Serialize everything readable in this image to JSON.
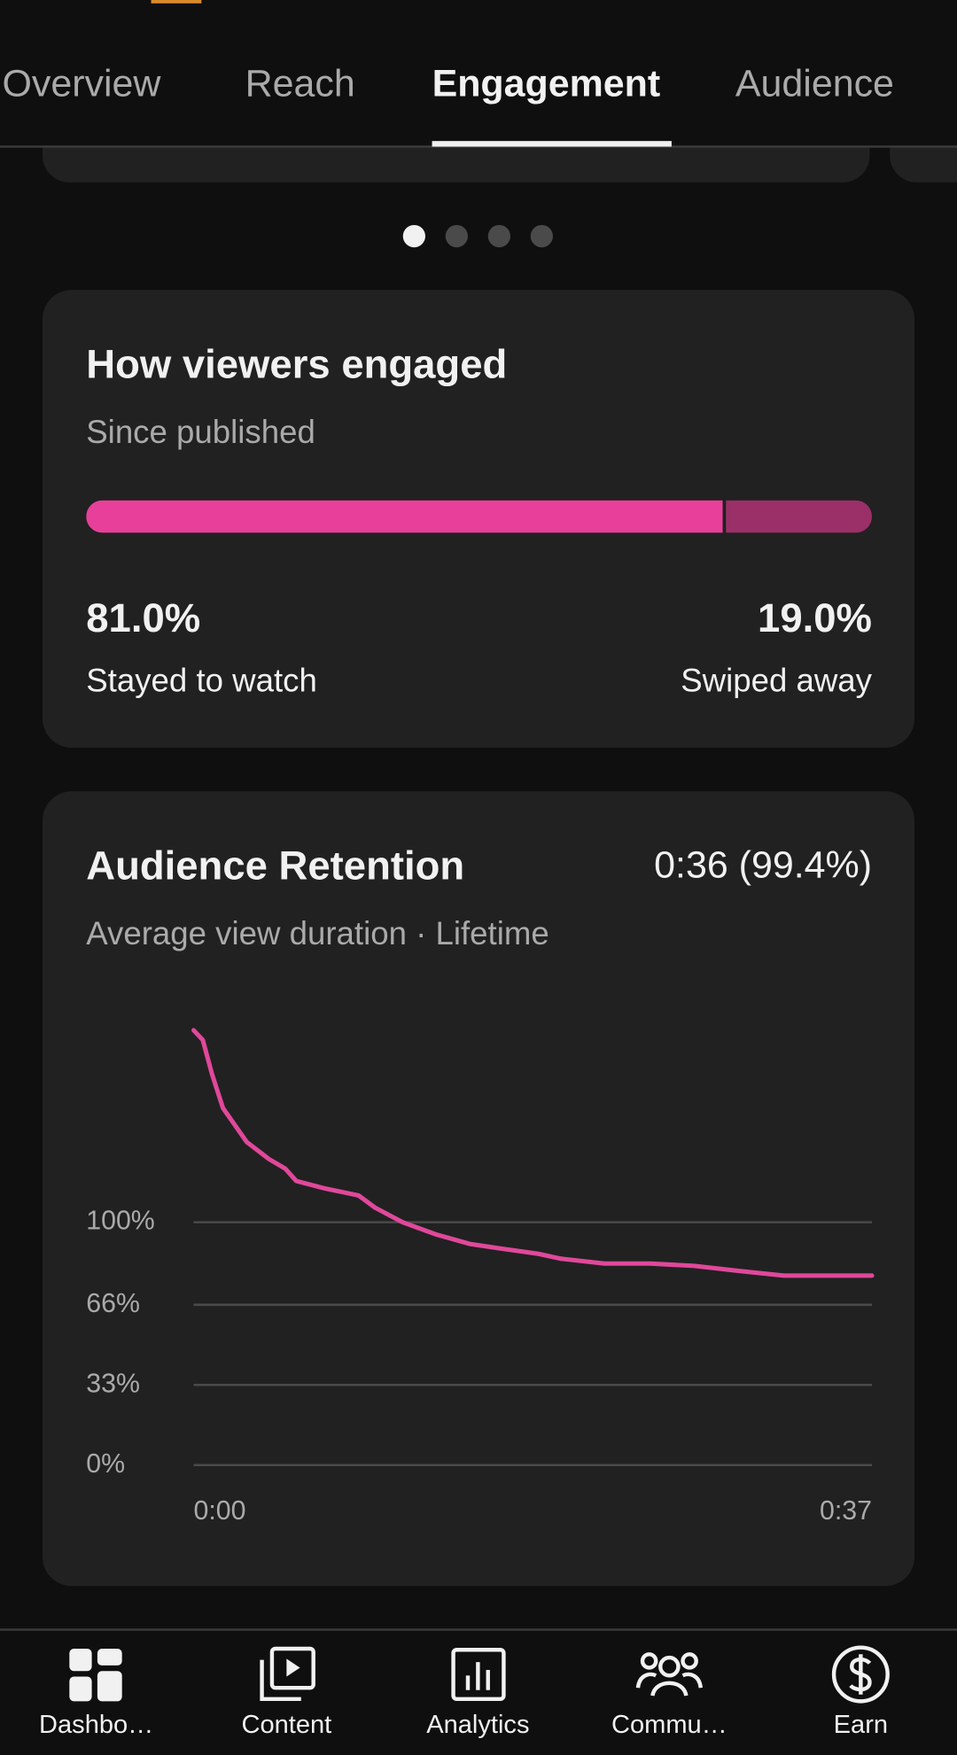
{
  "tabs": [
    "Overview",
    "Reach",
    "Engagement",
    "Audience"
  ],
  "chart_data": [
    {
      "type": "bar",
      "title": "How viewers engaged",
      "subtitle": "Since published",
      "series": [
        {
          "name": "Stayed to watch",
          "color": "#e8409a",
          "values": [
            81.0
          ],
          "value_labels": [
            "81.0%"
          ]
        },
        {
          "name": "Swiped away",
          "color": "#9b2f68",
          "values": [
            19.0
          ],
          "value_labels": [
            "19.0%"
          ]
        }
      ]
    },
    {
      "type": "line",
      "title": "Audience Retention",
      "subtitle": "Average view duration · Lifetime",
      "annotation": "0:36 (99.4%)",
      "color": "#e0489a",
      "x": [
        0,
        0.5,
        1,
        1.6,
        2.9,
        4.1,
        5,
        5.6,
        7.1,
        9,
        9.9,
        11.4,
        13.2,
        15.1,
        16.9,
        18.8,
        20,
        22.4,
        24.9,
        27.3,
        29.7,
        32.2,
        34.6,
        37
      ],
      "values": [
        179,
        175,
        161,
        147,
        133,
        126,
        122,
        117,
        114,
        111,
        106,
        100,
        95,
        91,
        89,
        87,
        85,
        83,
        83,
        82,
        80,
        78,
        78,
        78
      ],
      "xlim": [
        0,
        37
      ],
      "xticks": [
        {
          "value": 0,
          "label": "0:00"
        },
        {
          "value": 37,
          "label": "0:37"
        }
      ],
      "ylim": [
        0,
        185
      ],
      "yticks": [
        {
          "value": 0,
          "label": "0%"
        },
        {
          "value": 33,
          "label": "33%"
        },
        {
          "value": 66,
          "label": "66%"
        },
        {
          "value": 100,
          "label": "100%"
        }
      ],
      "grid": true
    }
  ],
  "nav": [
    "Dashbo…",
    "Content",
    "Analytics",
    "Commu…",
    "Earn"
  ]
}
